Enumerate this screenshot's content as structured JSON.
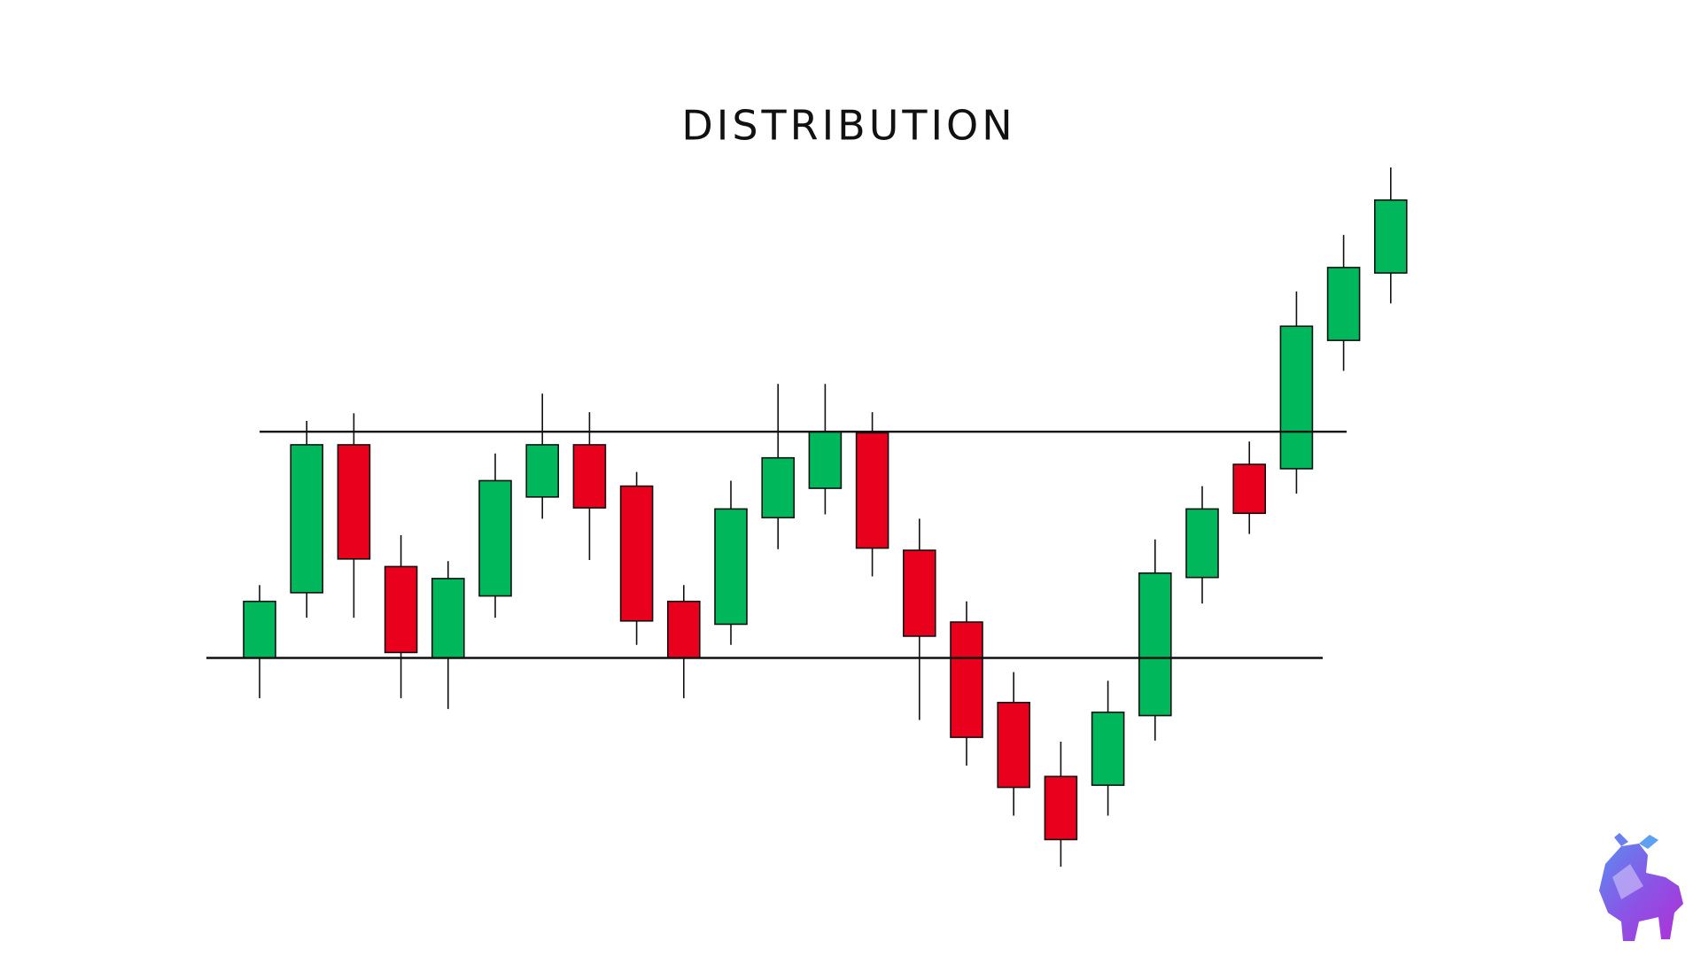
{
  "chart_data": {
    "type": "candlestick",
    "title": "DISTRIBUTION",
    "categories": [
      null,
      null,
      null,
      null,
      null,
      null,
      null,
      null,
      null,
      null,
      null,
      null,
      null,
      null,
      null,
      null,
      null,
      null,
      null,
      null,
      null,
      null,
      null,
      null,
      null
    ],
    "open": [
      275,
      335,
      471,
      359,
      275,
      332,
      423,
      471,
      433,
      327,
      306,
      404,
      431,
      482,
      374,
      308,
      234,
      166,
      158,
      222,
      349,
      453,
      449,
      567,
      629
    ],
    "high": [
      342,
      493,
      500,
      388,
      364,
      463,
      518,
      501,
      446,
      342,
      438,
      527,
      527,
      501,
      403,
      327,
      262,
      198,
      254,
      384,
      433,
      474,
      612,
      664,
      726
    ],
    "low": [
      238,
      312,
      312,
      238,
      228,
      312,
      403,
      365,
      287,
      238,
      287,
      375,
      407,
      350,
      218,
      176,
      130,
      83,
      130,
      199,
      325,
      389,
      426,
      539,
      601
    ],
    "close": [
      327,
      471,
      366,
      280,
      348,
      438,
      471,
      413,
      309,
      275,
      412,
      459,
      483,
      376,
      295,
      202,
      156,
      108,
      225,
      353,
      412,
      408,
      580,
      634,
      696
    ],
    "up_color": "#00b85c",
    "down_color": "#e8001c",
    "levels": [
      {
        "value": 483
      },
      {
        "value": 275
      }
    ],
    "ylim": [
      0,
      880
    ]
  }
}
